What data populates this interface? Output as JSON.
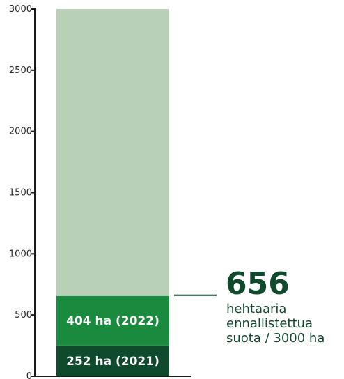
{
  "chart_data": {
    "type": "bar",
    "stacked": true,
    "ylim": [
      0,
      3000
    ],
    "yticks": [
      0,
      500,
      1000,
      1500,
      2000,
      2500,
      3000
    ],
    "total": 3000,
    "segments": [
      {
        "label": "252 ha (2021)",
        "value": 252,
        "color": "#0f4a2d"
      },
      {
        "label": "404 ha (2022)",
        "value": 404,
        "color": "#1a8a3f"
      },
      {
        "label": "",
        "value": 2344,
        "color": "#b8d0b8"
      }
    ],
    "grid": false,
    "legend": "none"
  },
  "callout": {
    "value": "656",
    "value_number": 656,
    "lines": [
      "hehtaaria",
      "ennallistettua",
      "suota / 3000 ha"
    ],
    "color": "#0f4a2d"
  }
}
